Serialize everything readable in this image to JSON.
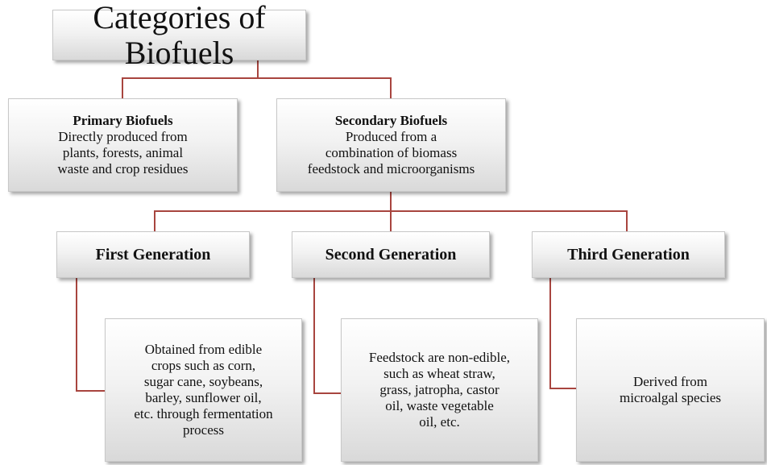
{
  "title": "Categories of Biofuels",
  "primary": {
    "heading": "Primary Biofuels",
    "lines": [
      "Directly produced from",
      "plants, forests, animal",
      "waste and crop residues"
    ]
  },
  "secondary": {
    "heading": "Secondary Biofuels",
    "lines": [
      "Produced from a",
      "combination of biomass",
      "feedstock and microorganisms"
    ]
  },
  "generations": [
    {
      "heading": "First Generation",
      "lines": [
        "Obtained from edible",
        "crops such as corn,",
        "sugar cane, soybeans,",
        "barley, sunflower oil,",
        "etc. through fermentation",
        "process"
      ]
    },
    {
      "heading": "Second Generation",
      "lines": [
        "Feedstock are non-edible,",
        "such as wheat straw,",
        "grass, jatropha, castor",
        "oil, waste vegetable",
        "oil, etc."
      ]
    },
    {
      "heading": "Third Generation",
      "lines": [
        "Derived from",
        "microalgal species"
      ]
    }
  ]
}
